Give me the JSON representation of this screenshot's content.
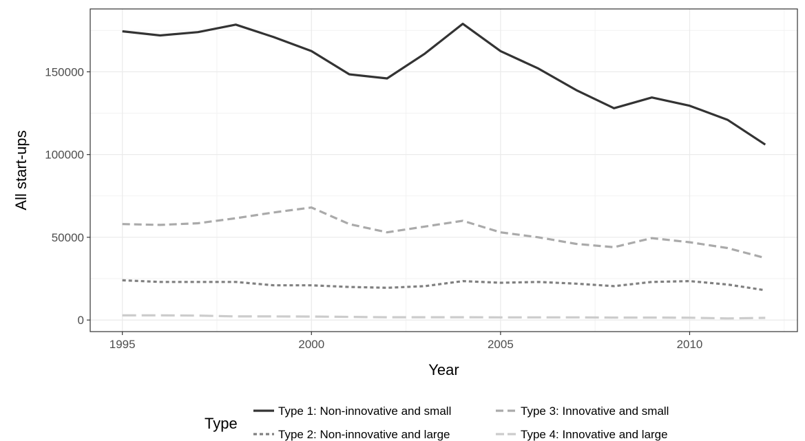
{
  "chart_data": {
    "type": "line",
    "title": "",
    "xlabel": "Year",
    "ylabel": "All start-ups",
    "xlim": [
      1994.15,
      1200.0
    ],
    "ylim": [
      -7000,
      188000
    ],
    "x_ticks": [
      1995,
      2000,
      2005,
      2010
    ],
    "y_ticks": [
      0,
      50000,
      100000,
      150000
    ],
    "y_tick_labels": [
      "0",
      "50000",
      "100000",
      "150000"
    ],
    "x_tick_labels": [
      "1995",
      "2000",
      "2005",
      "2010"
    ],
    "grid": true,
    "legend": {
      "title": "Type",
      "position": "bottom"
    },
    "x": [
      1995,
      1996,
      1997,
      1998,
      1999,
      2000,
      2001,
      2002,
      2003,
      2004,
      2005,
      2006,
      2007,
      2008,
      2009,
      2010,
      2011,
      2012
    ],
    "series": [
      {
        "name": "Type 1: Non-innovative and small",
        "color": "#333333",
        "linestyle": "solid",
        "values": [
          174500,
          172000,
          174000,
          178500,
          171000,
          162500,
          148500,
          146000,
          161000,
          179000,
          162500,
          152000,
          139000,
          128000,
          134500,
          129500,
          121000,
          106000
        ]
      },
      {
        "name": "Type 2: Non-innovative and large",
        "color": "#808080",
        "linestyle": "dotted",
        "values": [
          24000,
          23000,
          23000,
          23000,
          21000,
          21000,
          20000,
          19500,
          20500,
          23500,
          22500,
          23000,
          22000,
          20500,
          23000,
          23500,
          21500,
          18000
        ]
      },
      {
        "name": "Type 3: Innovative and small",
        "color": "#aaaaaa",
        "linestyle": "dashed",
        "values": [
          58000,
          57500,
          58500,
          61500,
          65000,
          68000,
          58000,
          53000,
          56500,
          60000,
          53000,
          50000,
          46000,
          44000,
          49500,
          47000,
          43500,
          37500
        ]
      },
      {
        "name": "Type 4: Innovative and large",
        "color": "#cccccc",
        "linestyle": "longdash",
        "values": [
          2800,
          2800,
          2700,
          2200,
          2200,
          2100,
          1900,
          1700,
          1700,
          1700,
          1600,
          1600,
          1600,
          1500,
          1500,
          1400,
          1000,
          1300
        ]
      }
    ]
  }
}
